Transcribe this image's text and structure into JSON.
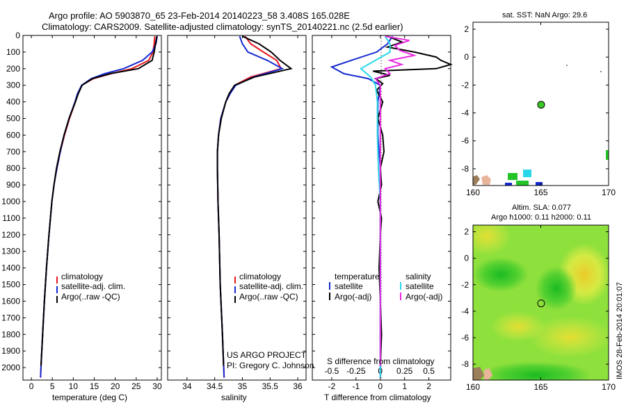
{
  "colors": {
    "climatology": "#e8141c",
    "satellite": "#1428d2",
    "argo": "#000000",
    "salinity_satellite": "#28d8e8",
    "salinity_argo": "#e828e0",
    "marker_green": "#3cc828",
    "sla_yellow": "#f2ee46",
    "sla_green": "#22c428"
  },
  "titles": {
    "line1": "Argo profile: AO 5903870_65 23-Feb-2014 20140223_58 3.408S 165.028E",
    "line2": "Climatology: CARS2009. Satellite-adjusted climatology: synTS_20140221.nc (2.5d earlier)"
  },
  "attribution": {
    "project": "US ARGO PROJECT",
    "pi": "PI: Gregory C. Johnson",
    "stamp": "IMOS 28-Feb-2014 20:01:07"
  },
  "chart_data": [
    {
      "type": "line",
      "name": "temperature-profile",
      "xlabel": "temperature (deg C)",
      "xlim": [
        -2,
        31
      ],
      "xticks": [
        "0",
        "5",
        "10",
        "15",
        "20",
        "25",
        "30"
      ],
      "xtick_values": [
        0,
        5,
        10,
        15,
        20,
        25,
        30
      ],
      "ylim": [
        0,
        2075
      ],
      "yticks": [
        "0",
        "100",
        "200",
        "300",
        "400",
        "500",
        "600",
        "700",
        "800",
        "900",
        "1000",
        "1100",
        "1200",
        "1300",
        "1400",
        "1500",
        "1600",
        "1700",
        "1800",
        "1900",
        "2000"
      ],
      "ytick_values": [
        0,
        100,
        200,
        300,
        400,
        500,
        600,
        700,
        800,
        900,
        1000,
        1100,
        1200,
        1300,
        1400,
        1500,
        1600,
        1700,
        1800,
        1900,
        2000
      ],
      "legend": [
        "climatology",
        "satellite-adj. clim.",
        "Argo(..raw -QC)"
      ],
      "series": [
        {
          "name": "climatology",
          "color_key": "climatology",
          "depth": [
            5,
            50,
            100,
            150,
            200,
            230,
            260,
            300,
            350,
            400,
            500,
            600,
            700,
            800,
            900,
            1000,
            1200,
            1400,
            1600,
            1800,
            2000,
            2060
          ],
          "values": [
            29.4,
            29.3,
            29.0,
            28.0,
            24.0,
            19.0,
            14.8,
            12.0,
            11.1,
            10.5,
            9.1,
            7.9,
            6.9,
            6.1,
            5.4,
            4.9,
            4.2,
            3.6,
            3.1,
            2.7,
            2.3,
            2.2
          ]
        },
        {
          "name": "satellite-adj. clim.",
          "color_key": "satellite",
          "depth": [
            5,
            50,
            100,
            150,
            200,
            230,
            260,
            300,
            350,
            400,
            500,
            600,
            700,
            800,
            900,
            1000,
            1200,
            1400,
            1600,
            1800,
            2000,
            2060
          ],
          "values": [
            30.0,
            29.7,
            28.8,
            26.5,
            22.0,
            17.5,
            14.3,
            12.0,
            11.0,
            10.4,
            9.0,
            7.8,
            6.9,
            6.1,
            5.4,
            4.9,
            4.2,
            3.6,
            3.1,
            2.7,
            2.3,
            2.2
          ]
        },
        {
          "name": "Argo(..raw -QC)",
          "color_key": "argo",
          "depth": [
            5,
            50,
            100,
            150,
            200,
            230,
            260,
            300,
            350,
            400,
            500,
            600,
            700,
            800,
            900,
            1000,
            1200,
            1400,
            1600,
            1800,
            1990
          ],
          "values": [
            29.9,
            29.6,
            29.3,
            28.8,
            25.5,
            18.8,
            14.6,
            12.1,
            11.2,
            10.5,
            9.0,
            7.8,
            6.8,
            6.0,
            5.4,
            4.9,
            4.2,
            3.6,
            3.1,
            2.7,
            2.3
          ]
        }
      ]
    },
    {
      "type": "line",
      "name": "salinity-profile",
      "xlabel": "salinity",
      "xlim": [
        33.65,
        36.15
      ],
      "xticks": [
        "34",
        "34.5",
        "35",
        "35.5",
        "36"
      ],
      "xtick_values": [
        34,
        34.5,
        35,
        35.5,
        36
      ],
      "ylim": [
        0,
        2075
      ],
      "legend": [
        "climatology",
        "satellite-adj. clim.",
        "Argo(..raw -QC)"
      ],
      "series": [
        {
          "name": "climatology",
          "color_key": "climatology",
          "depth": [
            5,
            50,
            100,
            150,
            200,
            250,
            300,
            350,
            400,
            500,
            600,
            700,
            800,
            1000,
            1200,
            1500,
            1800,
            2060
          ],
          "values": [
            35.05,
            35.15,
            35.38,
            35.62,
            35.7,
            35.15,
            34.86,
            34.78,
            34.7,
            34.61,
            34.57,
            34.55,
            34.55,
            34.56,
            34.58,
            34.6,
            34.64,
            34.67
          ]
        },
        {
          "name": "satellite-adj. clim.",
          "color_key": "satellite",
          "depth": [
            5,
            50,
            100,
            150,
            200,
            250,
            300,
            350,
            400,
            500,
            600,
            700,
            800,
            1000,
            1200,
            1500,
            1800,
            2060
          ],
          "values": [
            34.95,
            35.0,
            35.1,
            35.45,
            35.72,
            35.2,
            34.88,
            34.78,
            34.7,
            34.61,
            34.57,
            34.55,
            34.55,
            34.56,
            34.58,
            34.6,
            34.64,
            34.67
          ]
        },
        {
          "name": "Argo(..raw -QC)",
          "color_key": "argo",
          "depth": [
            5,
            50,
            100,
            150,
            200,
            250,
            300,
            350,
            400,
            500,
            600,
            700,
            800,
            1000,
            1200,
            1500,
            1800,
            1990
          ],
          "values": [
            35.0,
            35.3,
            35.52,
            35.68,
            35.88,
            35.22,
            34.86,
            34.76,
            34.7,
            34.62,
            34.57,
            34.55,
            34.55,
            34.56,
            34.58,
            34.6,
            34.64,
            34.66
          ]
        }
      ]
    },
    {
      "type": "line",
      "name": "difference-profile",
      "xlabel": "T difference from climatology",
      "xlabel_top": "S difference from climatology",
      "xlim": [
        -2.8,
        2.9
      ],
      "xticks": [
        "-2",
        "-1",
        "0",
        "1",
        "2"
      ],
      "xtick_values": [
        -2,
        -1,
        0,
        1,
        2
      ],
      "sticks": [
        "-0.5",
        "-0.25",
        "0",
        "0.25",
        "0.5"
      ],
      "stick_values": [
        -0.5,
        -0.25,
        0,
        0.25,
        0.5
      ],
      "s_scale": 4,
      "ylim": [
        0,
        2075
      ],
      "legend_temperature_title": "temperature",
      "legend_salinity_title": "salinity",
      "legend": [
        "satellite",
        "Argo(-adj)",
        "satellite",
        "Argo(-adj)"
      ],
      "series": [
        {
          "name": "temperature satellite",
          "color_key": "satellite",
          "depth": [
            5,
            50,
            100,
            150,
            190,
            230,
            260,
            300,
            400,
            600,
            800,
            1000,
            1500,
            2000,
            2060
          ],
          "values": [
            0.5,
            0.3,
            -0.15,
            -1.2,
            -2.0,
            -1.5,
            -0.5,
            0.0,
            -0.1,
            -0.1,
            0.0,
            0.0,
            0.0,
            0.0,
            0.0
          ]
        },
        {
          "name": "temperature Argo",
          "color_key": "argo",
          "depth": [
            5,
            40,
            70,
            100,
            130,
            150,
            175,
            200,
            215,
            240,
            260,
            290,
            330,
            400,
            500,
            600,
            700,
            800,
            900,
            1000,
            1100,
            1200,
            1400,
            1600,
            1800,
            1990
          ],
          "values": [
            0.3,
            0.9,
            0.3,
            1.4,
            2.3,
            2.5,
            2.9,
            2.3,
            -0.3,
            0.4,
            -0.2,
            0.1,
            -0.15,
            0.1,
            -0.1,
            0.1,
            0.15,
            0.0,
            0.05,
            -0.1,
            0.05,
            0.0,
            -0.05,
            0.0,
            0.05,
            0.0
          ]
        },
        {
          "name": "salinity satellite",
          "color_key": "salinity_satellite",
          "depth": [
            5,
            50,
            100,
            150,
            200,
            250,
            300,
            400,
            600,
            800,
            1000,
            1500,
            2000,
            2060
          ],
          "values": [
            0.05,
            0.1,
            0.1,
            -0.05,
            -0.2,
            -0.1,
            -0.05,
            -0.03,
            -0.03,
            -0.02,
            0.0,
            0.0,
            0.0,
            0.0
          ]
        },
        {
          "name": "salinity Argo",
          "color_key": "salinity_argo",
          "depth": [
            5,
            30,
            60,
            90,
            120,
            150,
            175,
            200,
            230,
            260,
            300,
            400,
            600,
            800,
            1000,
            1500,
            1990
          ],
          "values": [
            0.05,
            0.3,
            0.15,
            0.2,
            0.35,
            0.1,
            0.22,
            0.05,
            0.1,
            -0.05,
            0.0,
            0.0,
            0.0,
            0.0,
            0.0,
            0.0,
            0.0
          ]
        }
      ]
    },
    {
      "type": "scatter",
      "name": "sst-map",
      "title": "sat. SST: NaN Argo: 29.6",
      "xlim": [
        160,
        170
      ],
      "ylim": [
        -9.2,
        2.5
      ],
      "xticks": [
        "160",
        "165",
        "170"
      ],
      "xtick_values": [
        160,
        165,
        170
      ],
      "yticks": [
        "2",
        "0",
        "-2",
        "-4",
        "-6",
        "-8"
      ],
      "ytick_values": [
        2,
        0,
        -2,
        -4,
        -6,
        -8
      ],
      "argo_position": {
        "lon": 165.028,
        "lat": -3.408
      }
    },
    {
      "type": "heatmap",
      "name": "sla-map",
      "title_line1": "Altim. SLA: 0.077",
      "title_line2": "Argo h1000: 0.11 h2000: 0.11",
      "xlim": [
        160,
        170
      ],
      "ylim": [
        -9.2,
        2.5
      ],
      "xticks": [
        "160",
        "165",
        "170"
      ],
      "xtick_values": [
        160,
        165,
        170
      ],
      "yticks": [
        "2",
        "0",
        "-2",
        "-4",
        "-6",
        "-8"
      ],
      "ytick_values": [
        2,
        0,
        -2,
        -4,
        -6,
        -8
      ],
      "argo_position": {
        "lon": 165.028,
        "lat": -3.408
      }
    }
  ]
}
